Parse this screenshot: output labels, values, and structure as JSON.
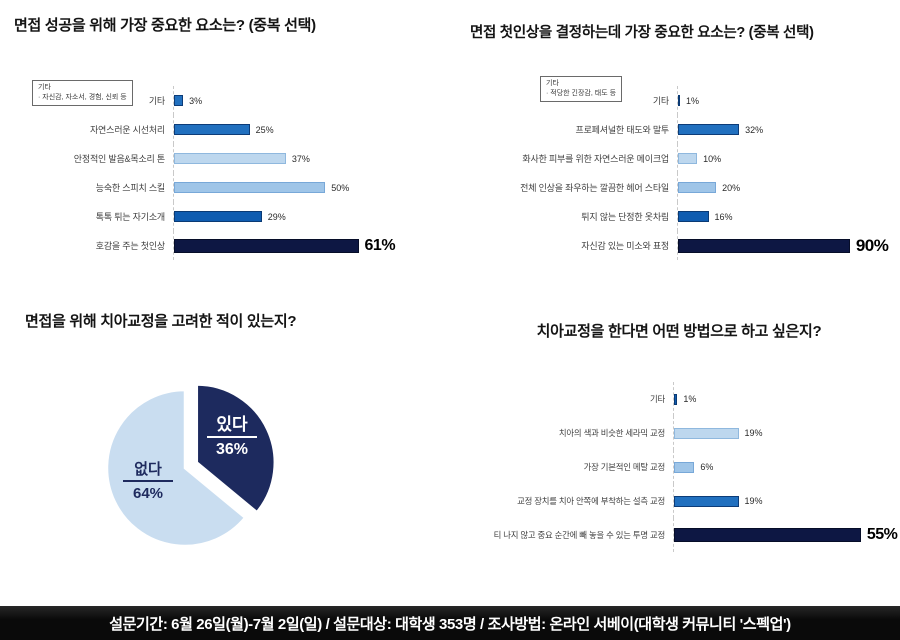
{
  "footer": {
    "text": "설문기간: 6월 26일(월)-7월 2일(일) / 설문대상: 대학생 353명 / 조사방법: 온라인 서베이(대학생 커뮤니티 '스펙업')",
    "background": "#0a0a0a",
    "text_color": "#ffffff"
  },
  "palette": {
    "strong_blue": "#2170bf",
    "deep_blue": "#0f5cb0",
    "light_blue": "#bdd7ee",
    "mid_blue": "#9fc5e8",
    "navy": "#0d1743",
    "pie_navy": "#1d2a5e",
    "pie_light": "#c9ddf0"
  },
  "chart_data": [
    {
      "id": "interview-success-factors",
      "type": "bar",
      "orientation": "horizontal",
      "title": "면접 성공을 위해 가장 중요한 요소는? (중복 선택)",
      "note": {
        "title": "기타",
        "body": "· 자신감, 자소서, 경험, 신뢰 등"
      },
      "categories": [
        "기타",
        "자연스러운 시선처리",
        "안정적인 발음&목소리 톤",
        "능숙한 스피치 스킬",
        "톡톡 튀는 자기소개",
        "호감을 주는 첫인상"
      ],
      "values": [
        3,
        25,
        37,
        50,
        29,
        61
      ],
      "value_labels": [
        "3%",
        "25%",
        "37%",
        "50%",
        "29%",
        "61%"
      ],
      "colors": [
        "#2170bf",
        "#2170bf",
        "#bdd7ee",
        "#9fc5e8",
        "#0f5cb0",
        "#0d1743"
      ],
      "border_colors": [
        "#0d3c78",
        "#0d3c78",
        "#8fb8de",
        "#78a8d8",
        "#0a3a74",
        "#060d28"
      ],
      "highlight_index": 5,
      "xlim": [
        0,
        80
      ],
      "grid": false,
      "legend": "none"
    },
    {
      "id": "first-impression-factors",
      "type": "bar",
      "orientation": "horizontal",
      "title": "면접 첫인상을 결정하는데 가장 중요한 요소는? (중복 선택)",
      "note": {
        "title": "기타",
        "body": "· 적당한 긴장감, 태도 등"
      },
      "categories": [
        "기타",
        "프로페셔널한 태도와 말투",
        "화사한 피부를 위한 자연스러운 메이크업",
        "전체 인상을 좌우하는 깔끔한 헤어 스타일",
        "튀지 않는 단정한 옷차림",
        "자신감 있는 미소와 표정"
      ],
      "values": [
        1,
        32,
        10,
        20,
        16,
        90
      ],
      "value_labels": [
        "1%",
        "32%",
        "10%",
        "20%",
        "16%",
        "90%"
      ],
      "colors": [
        "#0f5cb0",
        "#2170bf",
        "#bdd7ee",
        "#9fc5e8",
        "#0f5cb0",
        "#0d1743"
      ],
      "border_colors": [
        "#0a3a74",
        "#0d3c78",
        "#8fb8de",
        "#78a8d8",
        "#0a3a74",
        "#060d28"
      ],
      "highlight_index": 5,
      "xlim": [
        0,
        110
      ],
      "grid": false,
      "legend": "none"
    },
    {
      "id": "considered-orthodontics-for-interview",
      "type": "pie",
      "title": "면접을 위해 치아교정을 고려한 적이 있는지?",
      "slices": [
        {
          "label": "있다",
          "value": 36,
          "value_label": "36%",
          "color": "#1d2a5e",
          "exploded": true
        },
        {
          "label": "없다",
          "value": 64,
          "value_label": "64%",
          "color": "#c9ddf0",
          "exploded": false
        }
      ],
      "legend": "none"
    },
    {
      "id": "preferred-orthodontic-method",
      "type": "bar",
      "orientation": "horizontal",
      "title": "치아교정을 한다면 어떤 방법으로 하고 싶은지?",
      "categories": [
        "기타",
        "치아의 색과 비슷한 세라믹 교정",
        "가장 기본적인 메탈 교정",
        "교정 장치를 치아 안쪽에 부착하는 설측 교정",
        "티 나지 않고 중요 순간에 빼 놓을 수 있는 투명 교정"
      ],
      "values": [
        1,
        19,
        6,
        19,
        55
      ],
      "value_labels": [
        "1%",
        "19%",
        "6%",
        "19%",
        "55%"
      ],
      "colors": [
        "#0f5cb0",
        "#bdd7ee",
        "#9fc5e8",
        "#2170bf",
        "#0d1743"
      ],
      "border_colors": [
        "#0a3a74",
        "#8fb8de",
        "#78a8d8",
        "#0d3c78",
        "#060d28"
      ],
      "highlight_index": 4,
      "xlim": [
        0,
        63
      ],
      "grid": false,
      "legend": "none"
    }
  ]
}
